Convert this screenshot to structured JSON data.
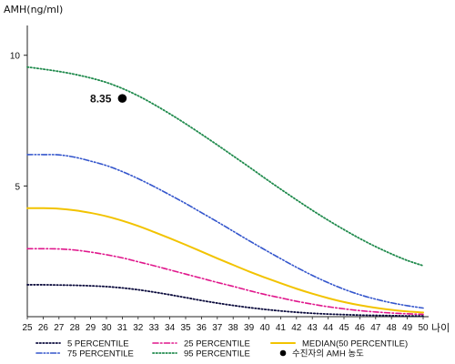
{
  "chart_data": {
    "type": "line",
    "xlabel": "나이",
    "ylabel": "AMH(ng/ml)",
    "x": [
      25,
      26,
      27,
      28,
      29,
      30,
      31,
      32,
      33,
      34,
      35,
      36,
      37,
      38,
      39,
      40,
      41,
      42,
      43,
      44,
      45,
      46,
      47,
      48,
      49,
      50
    ],
    "xlim": [
      25,
      50
    ],
    "ylim": [
      0,
      11
    ],
    "yticks": [
      5,
      10
    ],
    "series": [
      {
        "name": "5 PERCENTILE",
        "color": "#0a0a3c",
        "dash": "dotted",
        "values": [
          1.22,
          1.22,
          1.21,
          1.2,
          1.18,
          1.15,
          1.1,
          1.03,
          0.94,
          0.84,
          0.73,
          0.62,
          0.52,
          0.43,
          0.35,
          0.28,
          0.22,
          0.17,
          0.13,
          0.1,
          0.08,
          0.06,
          0.05,
          0.04,
          0.03,
          0.03
        ]
      },
      {
        "name": "25 PERCENTILE",
        "color": "#e0178c",
        "dash": "dash-dot",
        "values": [
          2.6,
          2.6,
          2.59,
          2.55,
          2.47,
          2.37,
          2.25,
          2.1,
          1.95,
          1.79,
          1.63,
          1.47,
          1.31,
          1.16,
          1.0,
          0.85,
          0.72,
          0.59,
          0.48,
          0.38,
          0.3,
          0.23,
          0.18,
          0.14,
          0.11,
          0.09
        ]
      },
      {
        "name": "MEDIAN(50 PERCENTILE)",
        "color": "#f2c300",
        "dash": "solid",
        "values": [
          4.15,
          4.15,
          4.13,
          4.07,
          3.97,
          3.84,
          3.67,
          3.47,
          3.24,
          3.0,
          2.75,
          2.49,
          2.23,
          1.98,
          1.73,
          1.5,
          1.28,
          1.07,
          0.88,
          0.71,
          0.56,
          0.44,
          0.34,
          0.26,
          0.2,
          0.16
        ]
      },
      {
        "name": "75 PERCENTILE",
        "color": "#3355cc",
        "dash": "dash-dot-dot",
        "values": [
          6.2,
          6.2,
          6.19,
          6.1,
          5.95,
          5.78,
          5.55,
          5.28,
          4.98,
          4.66,
          4.33,
          3.98,
          3.63,
          3.27,
          2.91,
          2.56,
          2.22,
          1.89,
          1.58,
          1.3,
          1.05,
          0.84,
          0.67,
          0.53,
          0.42,
          0.33
        ]
      },
      {
        "name": "95 PERCENTILE",
        "color": "#1f8a4c",
        "dash": "dotted",
        "values": [
          9.55,
          9.47,
          9.38,
          9.27,
          9.13,
          8.96,
          8.73,
          8.45,
          8.12,
          7.76,
          7.38,
          6.98,
          6.57,
          6.15,
          5.73,
          5.3,
          4.88,
          4.47,
          4.07,
          3.69,
          3.33,
          2.99,
          2.68,
          2.4,
          2.15,
          1.95
        ]
      }
    ],
    "points": [
      {
        "name": "수진자의 AMH 농도",
        "x": 31,
        "y": 8.35,
        "label": "8.35",
        "color": "#000000"
      }
    ],
    "legend": {
      "placement": "bottom",
      "entries": [
        {
          "text": "5 PERCENTILE",
          "series": 0,
          "row": 0,
          "col": 0
        },
        {
          "text": "25 PERCENTILE",
          "series": 1,
          "row": 0,
          "col": 1
        },
        {
          "text": "MEDIAN(50 PERCENTILE)",
          "series": 2,
          "row": 0,
          "col": 2
        },
        {
          "text": "75 PERCENTILE",
          "series": 3,
          "row": 1,
          "col": 0
        },
        {
          "text": "95 PERCENTILE",
          "series": 4,
          "row": 1,
          "col": 1
        },
        {
          "text": "수진자의 AMH 농도",
          "point": 0,
          "row": 1,
          "col": 2
        }
      ]
    },
    "grid": false
  }
}
